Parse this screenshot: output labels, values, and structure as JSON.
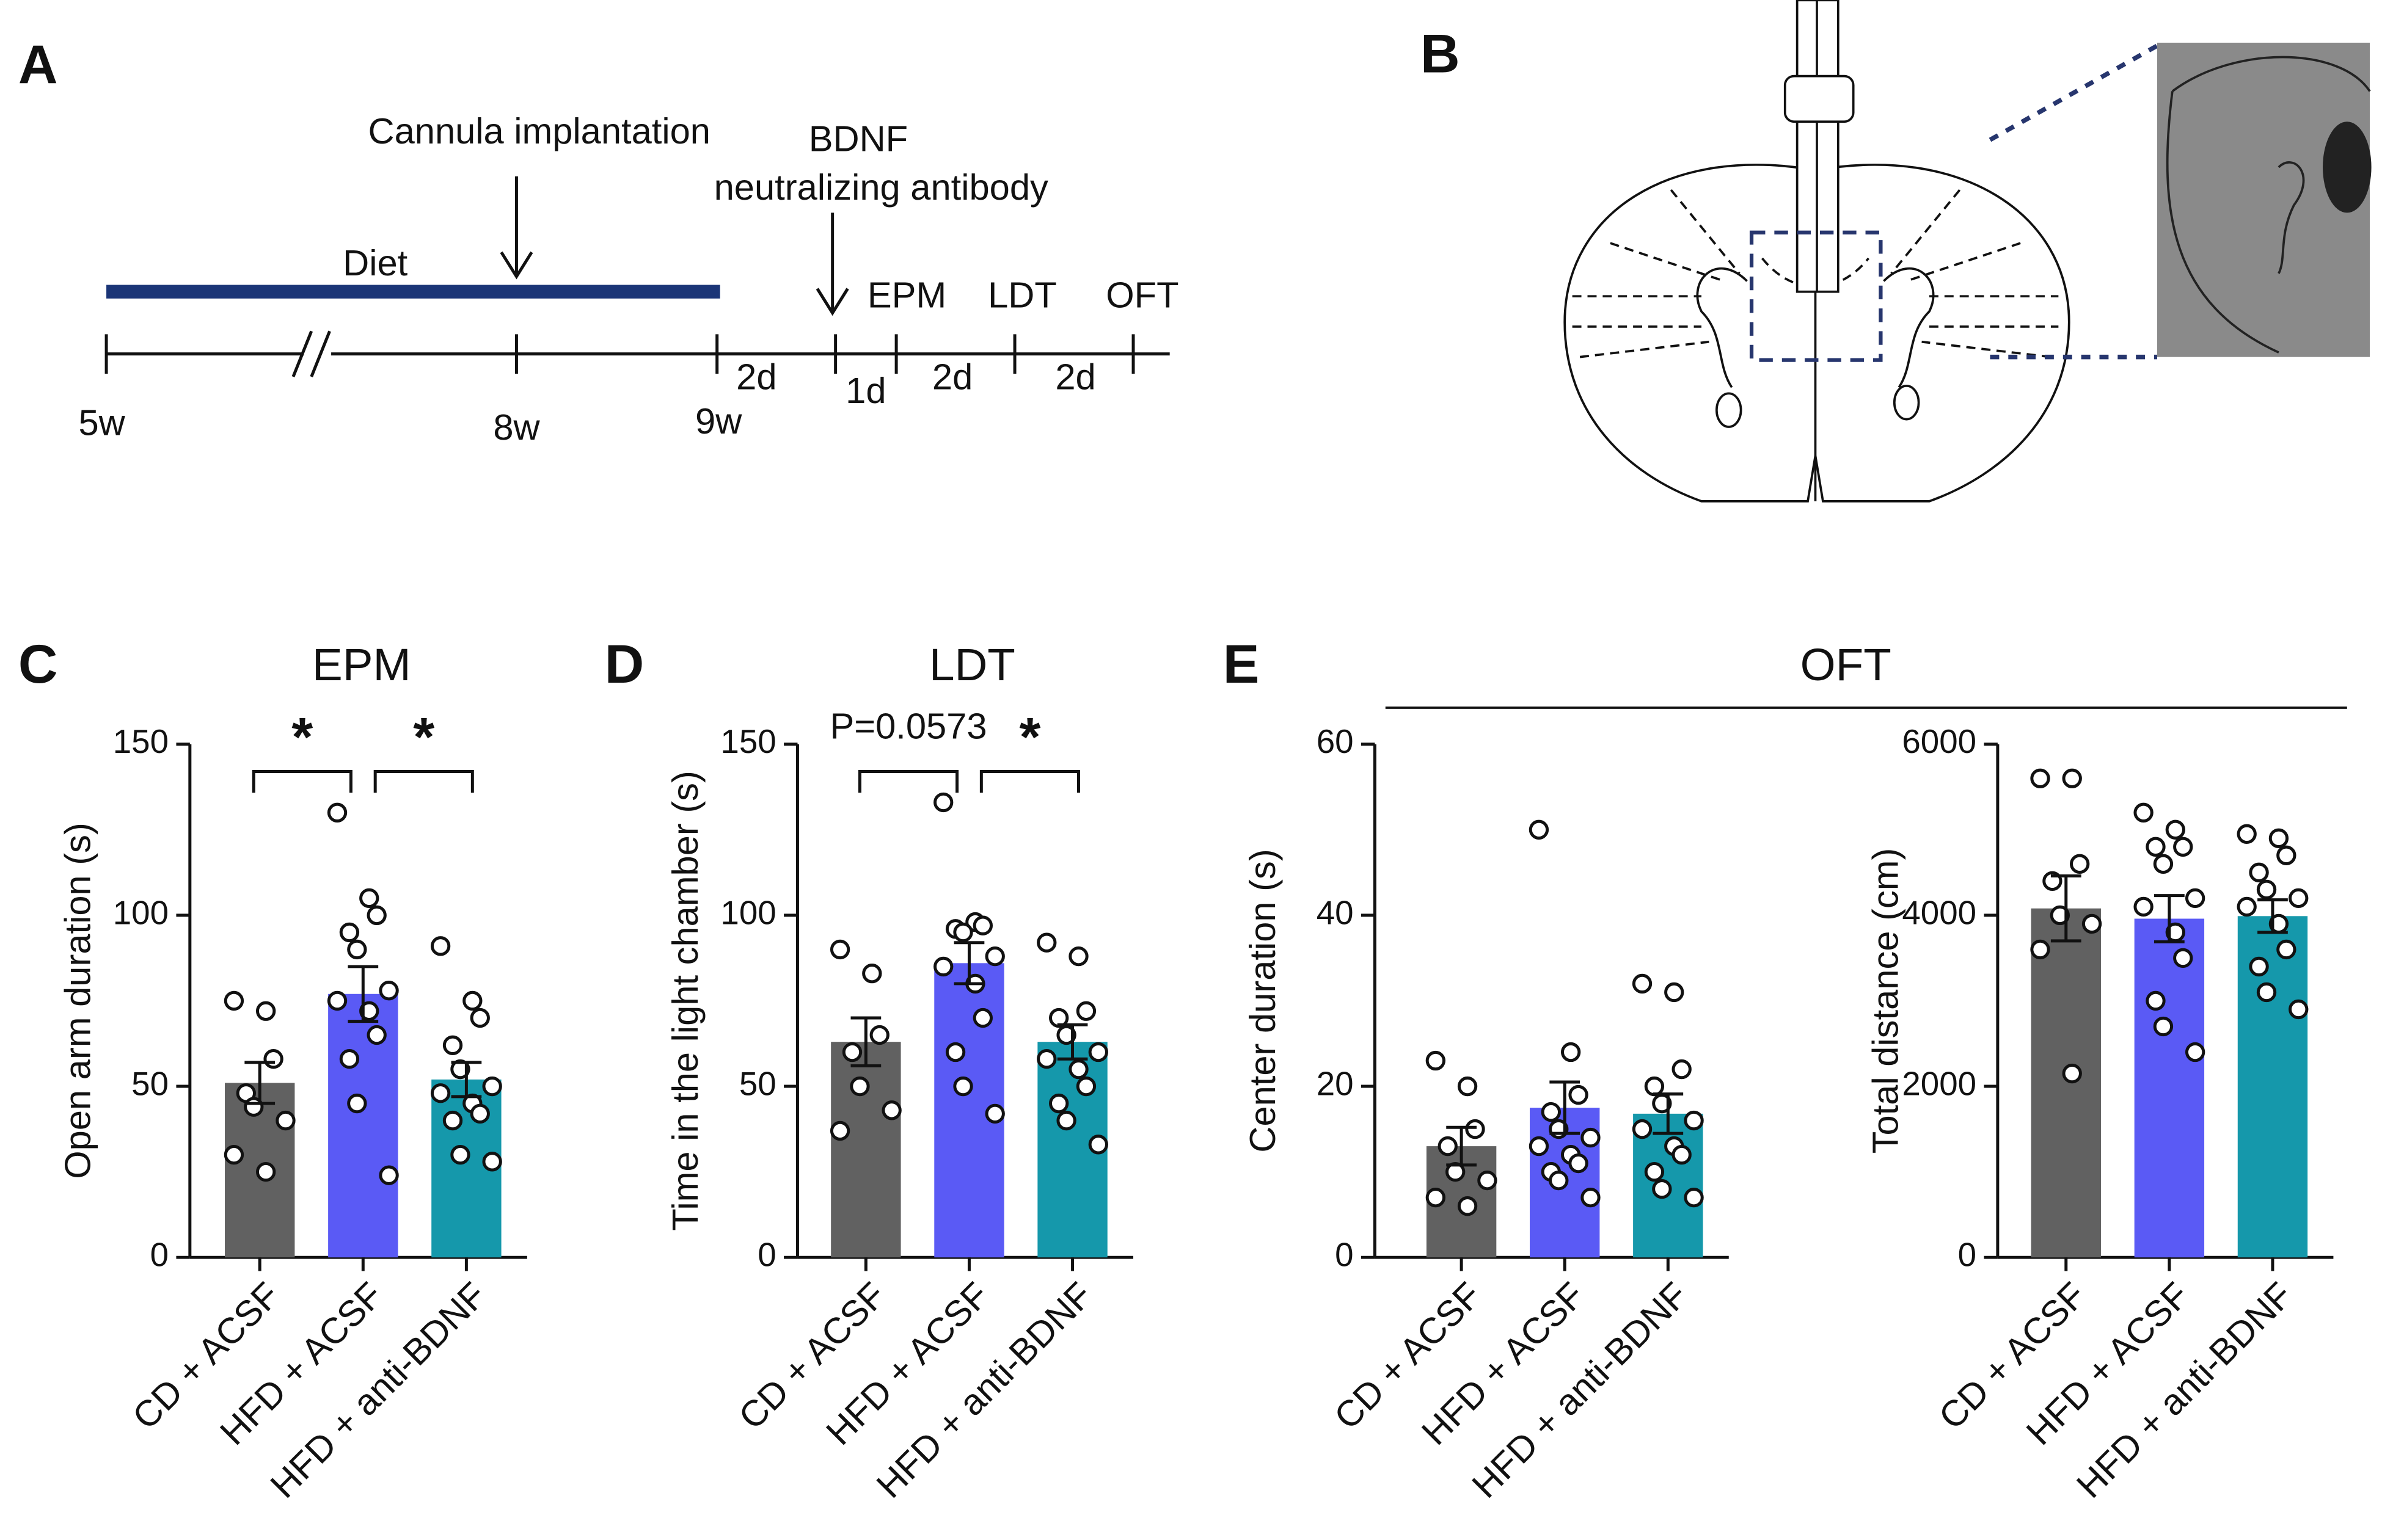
{
  "panel_labels": [
    "A",
    "B",
    "C",
    "D",
    "E"
  ],
  "timeline": {
    "diet": "Diet",
    "cannula": "Cannula implantation",
    "antibody": [
      "BDNF",
      "neutralizing antibody"
    ],
    "tests": [
      "EPM",
      "LDT",
      "OFT"
    ],
    "time_points": [
      "5w",
      "8w",
      "9w"
    ],
    "intervals": [
      "2d",
      "1d",
      "2d",
      "2d"
    ]
  },
  "chart_data": [
    {
      "type": "bar",
      "title": "EPM",
      "ylabel": "Open arm duration (s)",
      "categories": [
        "CD + ACSF",
        "HFD + ACSF",
        "HFD + anti-BDNF"
      ],
      "colors": [
        "#616161",
        "#5a5af5",
        "#1598ab"
      ],
      "values": [
        51,
        77,
        52
      ],
      "errors": [
        6,
        8,
        5
      ],
      "points": [
        [
          75,
          72,
          58,
          48,
          44,
          40,
          30,
          25
        ],
        [
          130,
          105,
          100,
          95,
          90,
          78,
          75,
          72,
          65,
          58,
          45,
          24
        ],
        [
          91,
          75,
          70,
          62,
          55,
          50,
          48,
          45,
          42,
          40,
          30,
          28
        ]
      ],
      "ylim": [
        0,
        150
      ],
      "yticks": [
        0,
        50,
        100,
        150
      ],
      "annotations": [
        "*",
        "*"
      ]
    },
    {
      "type": "bar",
      "title": "LDT",
      "ylabel": "Time in the light chamber (s)",
      "categories": [
        "CD + ACSF",
        "HFD + ACSF",
        "HFD + anti-BDNF"
      ],
      "colors": [
        "#616161",
        "#5a5af5",
        "#1598ab"
      ],
      "values": [
        63,
        86,
        63
      ],
      "errors": [
        7,
        6,
        5
      ],
      "points": [
        [
          90,
          83,
          65,
          60,
          50,
          43,
          37
        ],
        [
          133,
          98,
          97,
          96,
          95,
          88,
          85,
          80,
          70,
          60,
          50,
          42
        ],
        [
          92,
          88,
          72,
          70,
          65,
          60,
          58,
          55,
          50,
          45,
          40,
          33
        ]
      ],
      "ylim": [
        0,
        150
      ],
      "yticks": [
        0,
        50,
        100,
        150
      ],
      "annotations": [
        "P=0.0573",
        "*"
      ]
    },
    {
      "type": "bar",
      "title": "OFT",
      "ylabel": "Center duration (s)",
      "categories": [
        "CD + ACSF",
        "HFD + ACSF",
        "HFD + anti-BDNF"
      ],
      "colors": [
        "#616161",
        "#5a5af5",
        "#1598ab"
      ],
      "values": [
        13,
        17.5,
        16.8
      ],
      "errors": [
        2.2,
        3,
        2.3
      ],
      "points": [
        [
          23,
          20,
          15,
          13,
          10,
          9,
          7,
          6
        ],
        [
          50,
          24,
          19,
          17,
          15,
          14,
          13,
          12,
          11,
          10,
          9,
          7
        ],
        [
          32,
          31,
          22,
          20,
          18,
          16,
          15,
          13,
          12,
          10,
          8,
          7
        ]
      ],
      "ylim": [
        0,
        60
      ],
      "yticks": [
        0,
        20,
        40,
        60
      ]
    },
    {
      "type": "bar",
      "ylabel": "Total distance (cm)",
      "categories": [
        "CD + ACSF",
        "HFD + ACSF",
        "HFD + anti-BDNF"
      ],
      "colors": [
        "#616161",
        "#5a5af5",
        "#1598ab"
      ],
      "values": [
        4080,
        3960,
        3990
      ],
      "errors": [
        380,
        270,
        190
      ],
      "points": [
        [
          5600,
          5600,
          4600,
          4400,
          4000,
          3900,
          3600,
          2150
        ],
        [
          5200,
          5000,
          4800,
          4800,
          4600,
          4200,
          4100,
          3800,
          3500,
          3000,
          2700,
          2400
        ],
        [
          4950,
          4900,
          4700,
          4500,
          4300,
          4200,
          4100,
          3900,
          3600,
          3400,
          3100,
          2900
        ]
      ],
      "ylim": [
        0,
        6000
      ],
      "yticks": [
        0,
        2000,
        4000,
        6000
      ]
    }
  ]
}
